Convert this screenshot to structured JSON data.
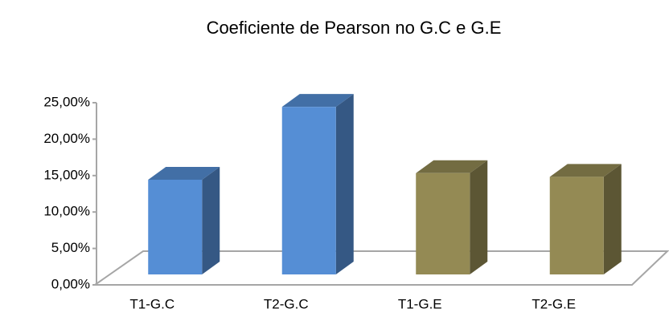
{
  "chart_data": {
    "type": "bar3d",
    "title": "Coeficiente de Pearson no G.C e G.E",
    "categories": [
      "T1-G.C",
      "T2-G.C",
      "T1-G.E",
      "T2-G.E"
    ],
    "values": [
      13.0,
      23.0,
      13.9,
      13.4
    ],
    "colors": [
      "#558ed5",
      "#558ed5",
      "#948a54",
      "#948a54"
    ],
    "ylim": [
      0,
      25
    ],
    "yticks": [
      {
        "value": 0,
        "label": "0,00%"
      },
      {
        "value": 5,
        "label": "5,00%"
      },
      {
        "value": 10,
        "label": "10,00%"
      },
      {
        "value": 15,
        "label": "15,00%"
      },
      {
        "value": 20,
        "label": "20,00%"
      },
      {
        "value": 25,
        "label": "25,00%"
      }
    ]
  }
}
